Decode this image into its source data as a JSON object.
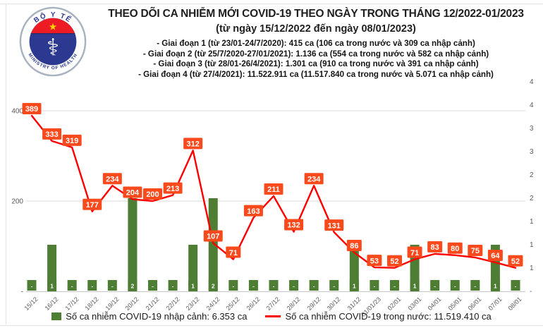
{
  "logo": {
    "top_text": "BỘ Y TẾ",
    "bottom_text": "MINISTRY OF HEALTH"
  },
  "header": {
    "title": "THEO DÕI CA NHIỄM MỚI COVID-19 THEO NGÀY TRONG THÁNG 12/2022-01/2023",
    "subtitle": "(từ ngày 15/12/2022 đến ngày 08/01/2023)",
    "phases": [
      "- Giai đoạn 1 (từ 23/01-24/7/2020): 415 ca (106 ca trong nước và 309 ca nhập cảnh)",
      "- Giai đoạn 2 (từ 25/7/2020-27/01/2021): 1.136 ca (554 ca trong nước và 582 ca nhập cảnh)",
      "- Giai đoạn 3 (từ 28/01-26/4/2021): 1.301 ca (910 ca trong nước và 391 ca nhập cảnh)",
      "- Giai đoạn 4 (từ 27/4/2021): 11.522.911 ca (11.517.840 ca trong nước và 5.071 ca nhập cảnh)"
    ]
  },
  "chart_data": {
    "type": "line+bar combo",
    "categories": [
      "15/12",
      "16/12",
      "17/12",
      "18/12",
      "19/12",
      "20/12",
      "21/12",
      "22/12",
      "23/12",
      "24/12",
      "25/12",
      "26/12",
      "27/12",
      "28/12",
      "29/12",
      "30/12",
      "31/12",
      "01/01/23",
      "02/01",
      "03/01",
      "04/01",
      "05/01",
      "06/01",
      "07/01",
      "08/01"
    ],
    "series": [
      {
        "name": "Số ca nhiễm COVID-19 nhập cảnh: 6.353 ca",
        "type": "bar",
        "axis": "right",
        "color": "#4e7e33",
        "values": [
          0,
          1,
          0,
          0,
          0,
          2,
          0,
          0,
          1,
          2,
          0,
          0,
          0,
          0,
          0,
          0,
          1,
          0,
          0,
          1,
          0,
          0,
          0,
          1,
          0
        ],
        "labels": [
          "-",
          "1",
          "-",
          "-",
          "-",
          "2",
          "-",
          "-",
          "1",
          "2",
          "-",
          "-",
          "-",
          "-",
          "-",
          "-",
          "1",
          "-",
          "-",
          "1",
          "-",
          "-",
          "-",
          "1",
          "-"
        ]
      },
      {
        "name": "Số ca nhiễm COVID-19 trong nước: 11.519.410 ca",
        "type": "line",
        "axis": "left",
        "color": "#fe0000",
        "values": [
          389,
          333,
          319,
          177,
          234,
          204,
          200,
          213,
          312,
          107,
          71,
          163,
          211,
          132,
          234,
          131,
          86,
          53,
          52,
          71,
          83,
          80,
          75,
          64,
          52
        ]
      }
    ],
    "left_axis": {
      "ticks": [
        [
          "400",
          400
        ],
        [
          "200",
          200
        ],
        [
          "-",
          0
        ]
      ],
      "range": [
        0,
        460
      ]
    },
    "right_axis": {
      "ticks_top_down": [
        "4",
        "4",
        "3",
        "3",
        "2",
        "2",
        "1",
        "1",
        "1",
        "-"
      ],
      "range": [
        0,
        4.5
      ]
    },
    "grid": true,
    "legend_position": "bottom",
    "data_label_box_color": "#f84a1d",
    "data_label_text_color": "#ffffff",
    "grid_color": "#d9d9d9",
    "axis_text_color": "#595959"
  },
  "legend": {
    "bar_label": "Số ca nhiễm COVID-19 nhập cảnh: 6.353 ca",
    "line_label": "Số ca nhiễm COVID-19 trong nước: 11.519.410 ca"
  }
}
